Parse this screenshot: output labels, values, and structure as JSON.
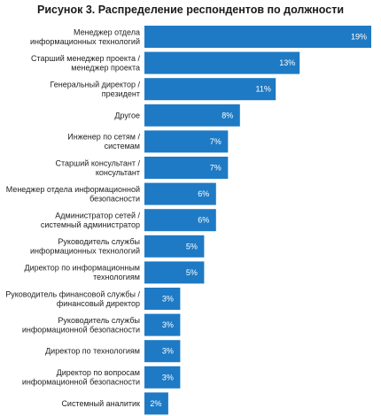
{
  "chart_data": {
    "type": "bar",
    "orientation": "horizontal",
    "title": "Рисунок 3. Распределение респондентов по должности",
    "categories": [
      [
        "Менеджер отдела",
        "информационных технологий"
      ],
      [
        "Старший менеджер проекта /",
        "менеджер проекта"
      ],
      [
        "Генеральный директор /",
        "президент"
      ],
      [
        "Другое"
      ],
      [
        "Инженер по сетям /",
        "системам"
      ],
      [
        "Старший консультант /",
        "консультант"
      ],
      [
        "Менеджер отдела информационной",
        "безопасности"
      ],
      [
        "Администратор сетей /",
        "системный администратор"
      ],
      [
        "Руководитель службы",
        "информационных технологий"
      ],
      [
        "Директор по информационным",
        "технологиям"
      ],
      [
        "Руководитель финансовой службы /",
        "финансовый директор"
      ],
      [
        "Руководитель службы",
        "информационной безопасности"
      ],
      [
        "Директор по технологиям"
      ],
      [
        "Директор по вопросам",
        "информационной безопасности"
      ],
      [
        "Системный аналитик"
      ]
    ],
    "values": [
      19,
      13,
      11,
      8,
      7,
      7,
      6,
      6,
      5,
      5,
      3,
      3,
      3,
      3,
      2
    ],
    "value_labels": [
      "19%",
      "13%",
      "11%",
      "8%",
      "7%",
      "7%",
      "6%",
      "6%",
      "5%",
      "5%",
      "3%",
      "3%",
      "3%",
      "3%",
      "2%"
    ],
    "bar_color": "#1e7ac4",
    "xlim": [
      0,
      19
    ],
    "grid": false,
    "legend": "none"
  }
}
